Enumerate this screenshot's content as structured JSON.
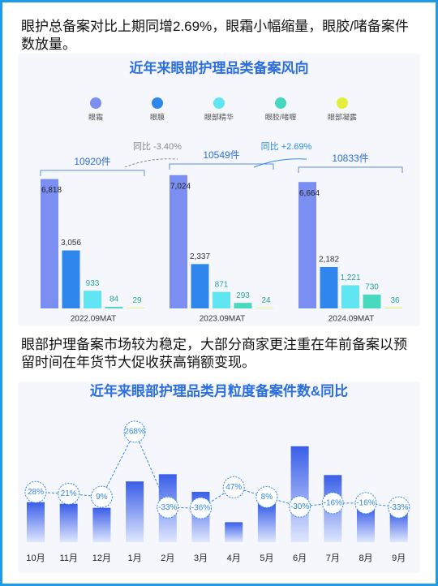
{
  "header": {
    "text": "眼护总备案对比上期同增2.69%，眼霜小幅缩量，眼胶/啫备案件数放量。"
  },
  "section2": {
    "text": "眼部护理备案市场较为稳定，大部分商家更注重在年前备案以预留时间在年货节大促收获高销额变现。"
  },
  "chart_data": [
    {
      "type": "grouped_bar",
      "title": "近年来眼部护理品类备案风向",
      "categories": [
        "2022.09MAT",
        "2023.09MAT",
        "2024.09MAT"
      ],
      "ylim": [
        0,
        7400
      ],
      "series": [
        {
          "name": "眼霜",
          "color": "#7b8ef2",
          "values": [
            6818,
            7024,
            6664
          ],
          "value_labels": [
            "6,818",
            "7,024",
            "6,664"
          ]
        },
        {
          "name": "眼膜",
          "color": "#2f86ec",
          "values": [
            3056,
            2337,
            2182
          ],
          "value_labels": [
            "3,056",
            "2,337",
            "2,182"
          ]
        },
        {
          "name": "眼部精华",
          "color": "#5fe6f2",
          "values": [
            933,
            871,
            1221
          ],
          "value_labels": [
            "933",
            "871",
            "1,221"
          ]
        },
        {
          "name": "眼胶/啫喱",
          "color": "#47d9bd",
          "values": [
            84,
            293,
            730
          ]
        },
        {
          "name": "眼部凝露",
          "color": "#e4ee3c",
          "values": [
            29,
            24,
            36
          ]
        }
      ],
      "total_labels": [
        "10920件",
        "10549件",
        "10833件"
      ],
      "growth_labels": [
        "同比 -3.40%",
        "同比 +2.69%"
      ]
    },
    {
      "type": "bar_line",
      "title": "近年来眼部护理品类月粒度备案件数&同比",
      "categories": [
        "10月",
        "11月",
        "12月",
        "1月",
        "2月",
        "3月",
        "4月",
        "5月",
        "6月",
        "7月",
        "8月",
        "9月"
      ],
      "ylim": [
        0,
        130
      ],
      "y2lim": [
        -60,
        300
      ],
      "series": [
        {
          "color": "#3a5ee8",
          "values": [
            50,
            48,
            43,
            76,
            85,
            63,
            25,
            48,
            120,
            84,
            43,
            38
          ]
        },
        {
          "color": "#2f86ec",
          "axis": "y2",
          "values": [
            28,
            21,
            9,
            268,
            -33,
            -36,
            47,
            8,
            -30,
            -16,
            -16,
            -33
          ],
          "value_labels": [
            "28%",
            "21%",
            "9%",
            "268%",
            "-33%",
            "-36%",
            "47%",
            "8%",
            "-30%",
            "-16%",
            "-16%",
            "-33%"
          ]
        }
      ]
    }
  ]
}
